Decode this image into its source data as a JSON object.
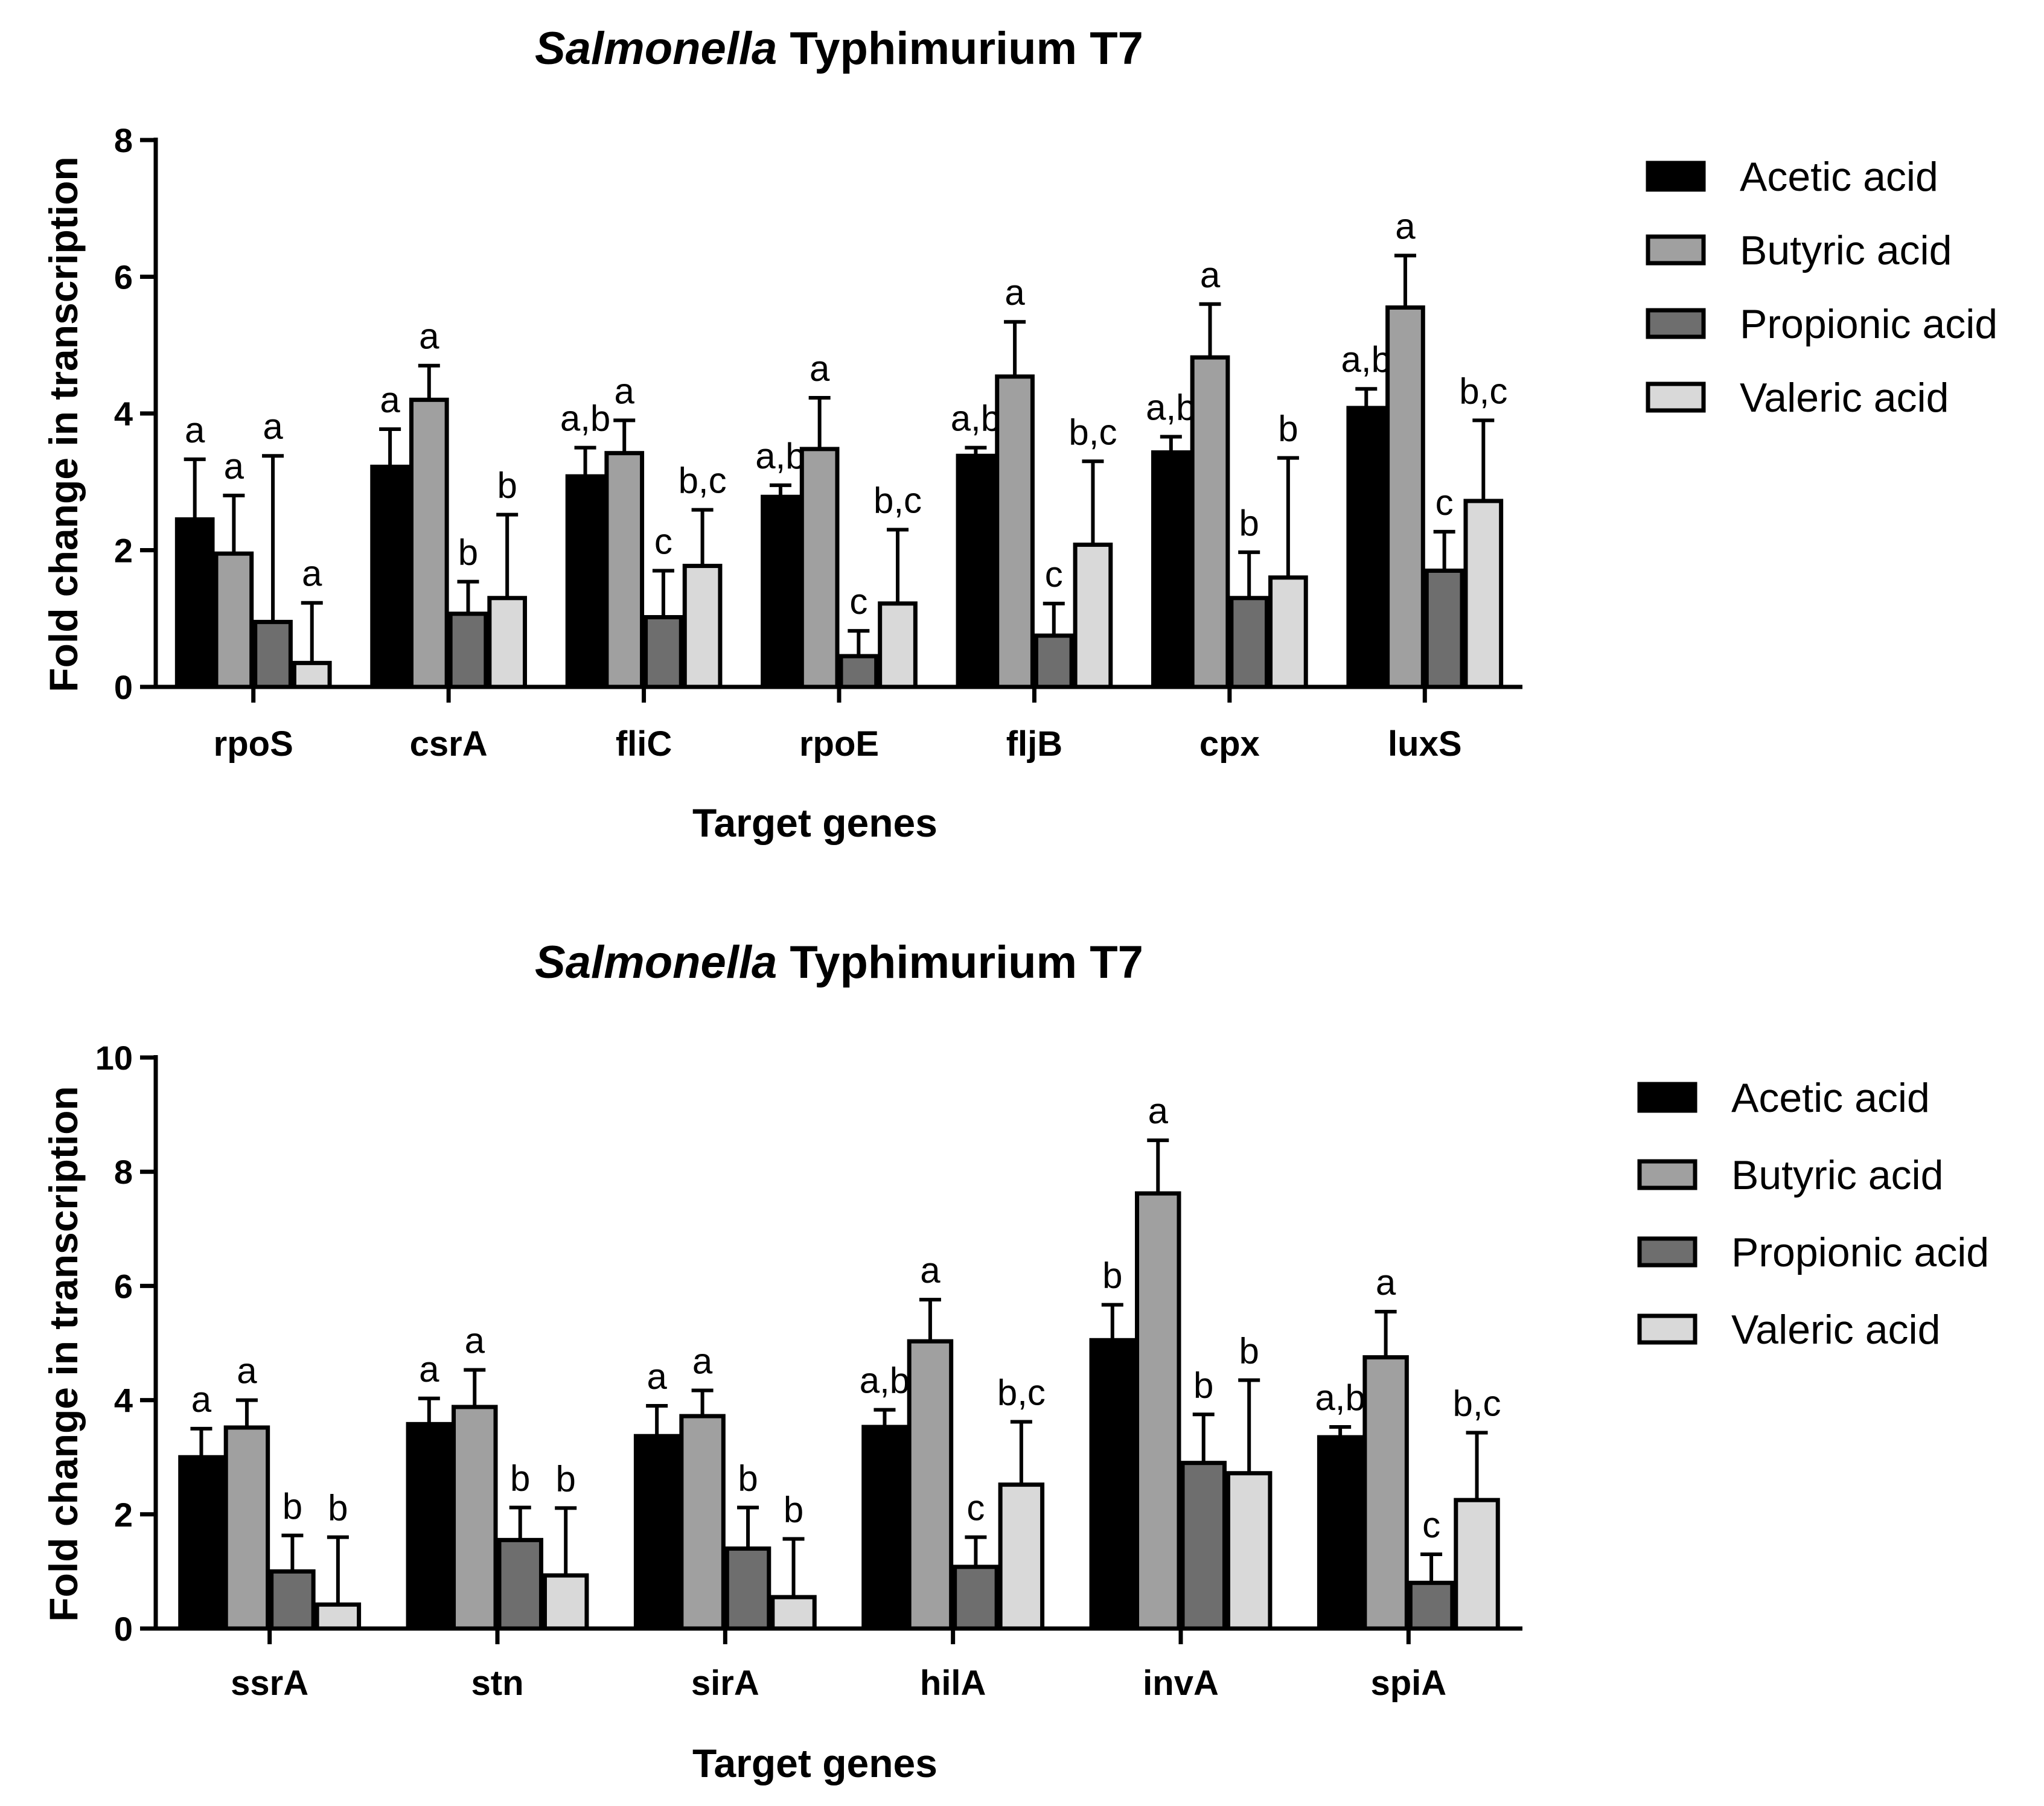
{
  "colors": {
    "Acetic acid": "#000000",
    "Butyric acid": "#a0a0a0",
    "Propionic acid": "#6e6e6e",
    "Valeric acid": "#d9d9d9",
    "axis": "#000000"
  },
  "chart_data": [
    {
      "type": "bar",
      "title_italic": "Salmonella",
      "title_rest": " Typhimurium T7",
      "xlabel": "Target genes",
      "ylabel": "Fold change in transcription",
      "ylim": [
        0,
        8
      ],
      "yticks": [
        "0",
        "2",
        "4",
        "6",
        "8"
      ],
      "categories": [
        "rpoS",
        "csrA",
        "fliC",
        "rpoE",
        "fljB",
        "cpx",
        "luxS"
      ],
      "legend_position": "right",
      "series": [
        {
          "name": "Acetic acid",
          "values": [
            2.45,
            3.22,
            3.08,
            2.78,
            3.38,
            3.43,
            4.08
          ],
          "errors": [
            0.88,
            0.55,
            0.42,
            0.17,
            0.12,
            0.23,
            0.28
          ],
          "labels": [
            "a",
            "a",
            "a,b",
            "a,b",
            "a,b",
            "a,b",
            "a,b"
          ]
        },
        {
          "name": "Butyric acid",
          "values": [
            1.95,
            4.2,
            3.42,
            3.48,
            4.54,
            4.82,
            5.55
          ],
          "errors": [
            0.85,
            0.5,
            0.48,
            0.75,
            0.8,
            0.78,
            0.76
          ],
          "labels": [
            "a",
            "a",
            "a",
            "a",
            "a",
            "a",
            "a"
          ]
        },
        {
          "name": "Propionic acid",
          "values": [
            0.95,
            1.07,
            1.02,
            0.45,
            0.75,
            1.3,
            1.7
          ],
          "errors": [
            2.43,
            0.47,
            0.68,
            0.37,
            0.47,
            0.67,
            0.57
          ],
          "labels": [
            "a",
            "b",
            "c",
            "c",
            "c",
            "b",
            "c"
          ]
        },
        {
          "name": "Valeric acid",
          "values": [
            0.35,
            1.3,
            1.77,
            1.22,
            2.08,
            1.6,
            2.72
          ],
          "errors": [
            0.88,
            1.22,
            0.82,
            1.08,
            1.22,
            1.75,
            1.18
          ],
          "labels": [
            "a",
            "b",
            "b,c",
            "b,c",
            "b,c",
            "b",
            "b,c"
          ]
        }
      ]
    },
    {
      "type": "bar",
      "title_italic": "Salmonella",
      "title_rest": " Typhimurium T7",
      "xlabel": "Target genes",
      "ylabel": "Fold change in transcription",
      "ylim": [
        0,
        10
      ],
      "yticks": [
        "0",
        "2",
        "4",
        "6",
        "8",
        "10"
      ],
      "categories": [
        "ssrA",
        "stn",
        "sirA",
        "hilA",
        "invA",
        "spiA"
      ],
      "legend_position": "right",
      "series": [
        {
          "name": "Acetic acid",
          "values": [
            3.0,
            3.58,
            3.37,
            3.53,
            5.05,
            3.35
          ],
          "errors": [
            0.5,
            0.45,
            0.53,
            0.3,
            0.62,
            0.18
          ],
          "labels": [
            "a",
            "a",
            "a",
            "a,b",
            "b",
            "a,b"
          ]
        },
        {
          "name": "Butyric acid",
          "values": [
            3.52,
            3.88,
            3.72,
            5.03,
            7.62,
            4.75
          ],
          "errors": [
            0.48,
            0.65,
            0.45,
            0.73,
            0.93,
            0.8
          ],
          "labels": [
            "a",
            "a",
            "a",
            "a",
            "a",
            "a"
          ]
        },
        {
          "name": "Propionic acid",
          "values": [
            1.0,
            1.55,
            1.4,
            1.08,
            2.9,
            0.8
          ],
          "errors": [
            0.63,
            0.57,
            0.72,
            0.52,
            0.85,
            0.5
          ],
          "labels": [
            "b",
            "b",
            "b",
            "c",
            "b",
            "c"
          ]
        },
        {
          "name": "Valeric acid",
          "values": [
            0.42,
            0.93,
            0.55,
            2.52,
            2.72,
            2.25
          ],
          "errors": [
            1.18,
            1.18,
            1.02,
            1.1,
            1.63,
            1.18
          ],
          "labels": [
            "b",
            "b",
            "b",
            "b,c",
            "b",
            "b,c"
          ]
        }
      ]
    }
  ]
}
